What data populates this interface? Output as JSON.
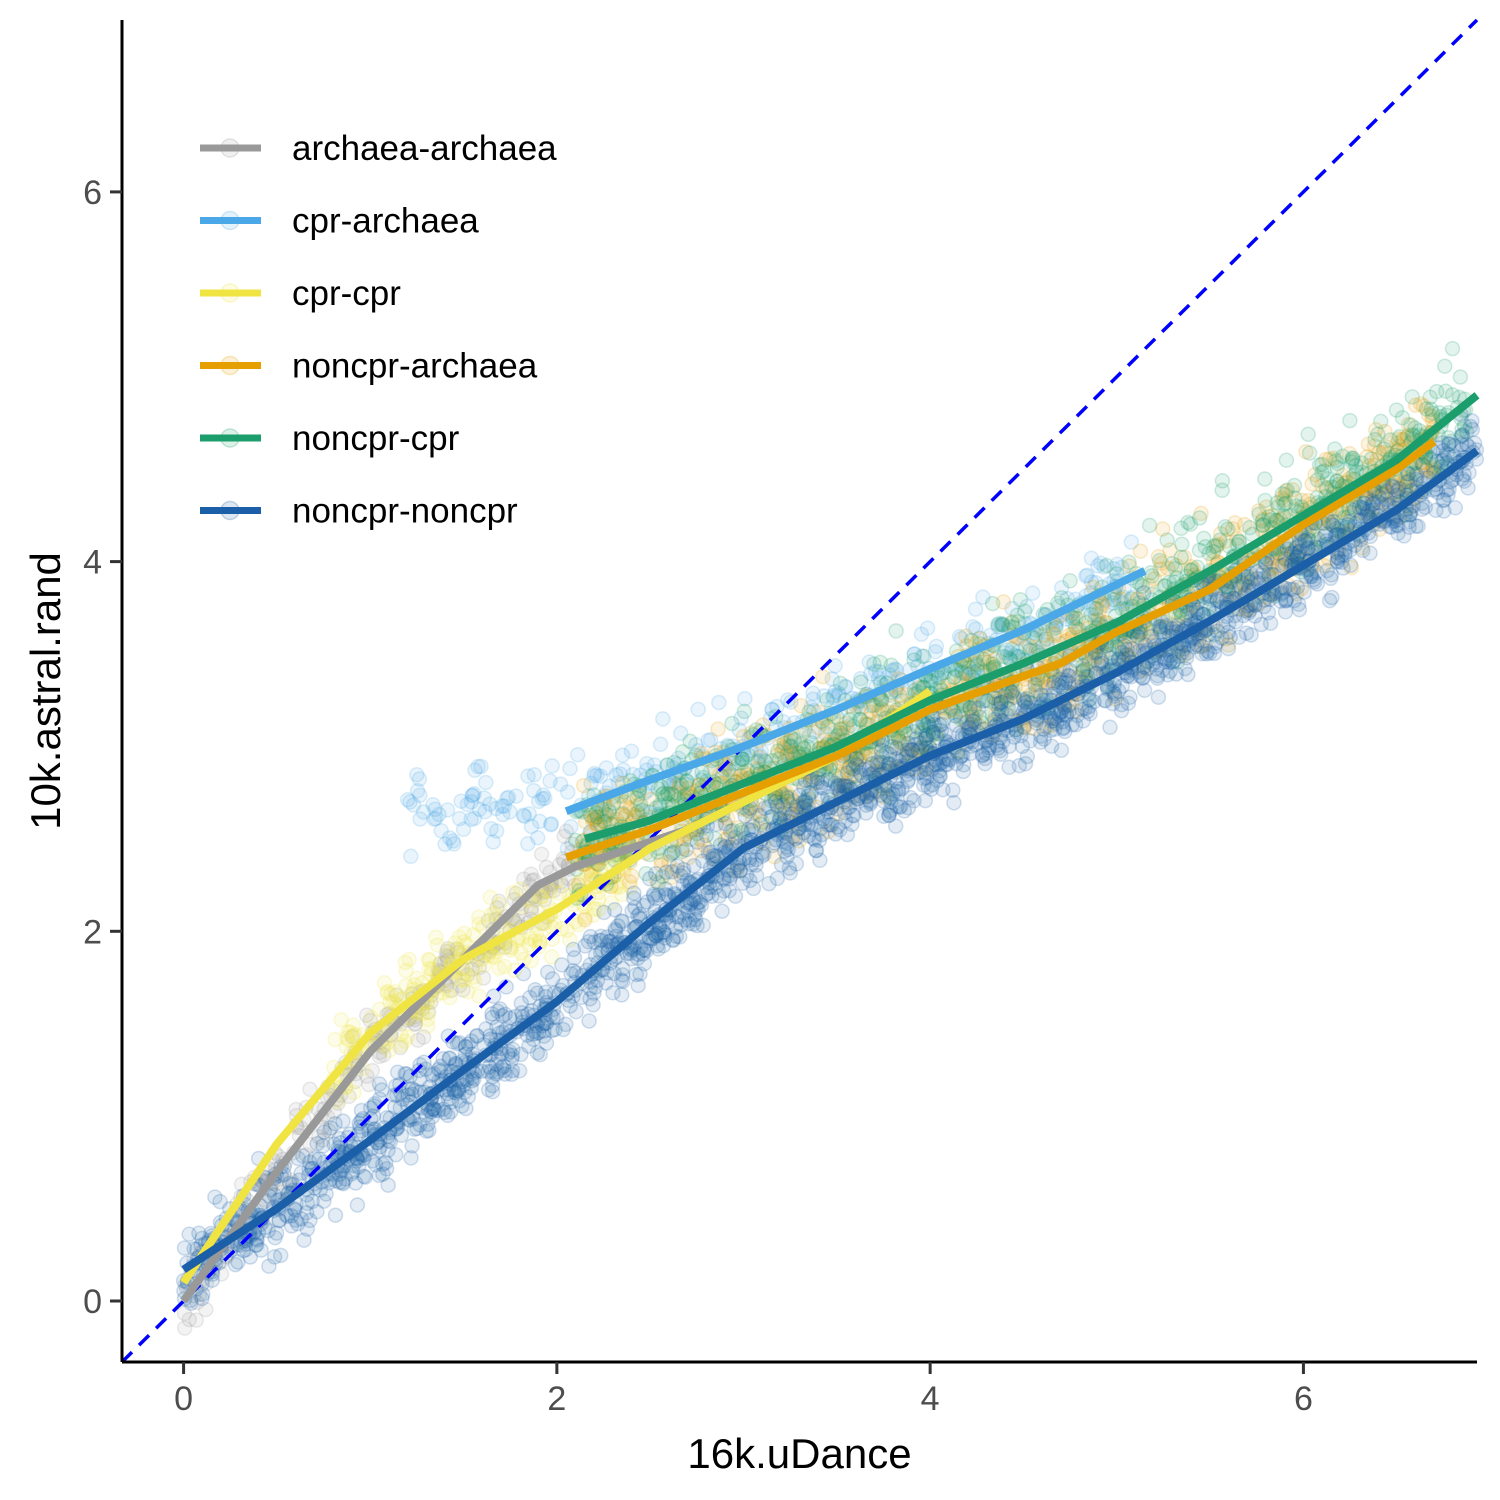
{
  "chart_data": {
    "type": "scatter",
    "title": "",
    "xlabel": "16k.uDance",
    "ylabel": "10k.astral.rand",
    "xlim": [
      -0.33,
      6.93
    ],
    "ylim": [
      -0.33,
      6.93
    ],
    "x_ticks": [
      0,
      2,
      4,
      6
    ],
    "y_ticks": [
      0,
      2,
      4,
      6
    ],
    "x_tick_labels": [
      "0",
      "2",
      "4",
      "6"
    ],
    "y_tick_labels": [
      "0",
      "2",
      "4",
      "6"
    ],
    "grid": false,
    "legend_position": "top-left",
    "reference_line": {
      "type": "identity",
      "slope": 1,
      "intercept": 0,
      "color": "#0000ff",
      "style": "dashed"
    },
    "series": [
      {
        "name": "archaea-archaea",
        "color": "#999999",
        "point_region": {
          "x_range": [
            0.0,
            2.1
          ],
          "spread": 0.18
        },
        "smooth": [
          [
            0.0,
            0.0
          ],
          [
            0.5,
            0.7
          ],
          [
            1.0,
            1.35
          ],
          [
            1.5,
            1.85
          ],
          [
            1.9,
            2.25
          ],
          [
            2.1,
            2.35
          ],
          [
            2.4,
            2.45
          ],
          [
            2.7,
            2.55
          ],
          [
            3.0,
            2.7
          ],
          [
            3.3,
            2.85
          ]
        ]
      },
      {
        "name": "cpr-archaea",
        "color": "#4aa8e8",
        "point_region": {
          "x_range": [
            1.2,
            5.1
          ],
          "spread": 0.22
        },
        "smooth": [
          [
            2.05,
            2.65
          ],
          [
            2.5,
            2.82
          ],
          [
            3.0,
            3.0
          ],
          [
            3.5,
            3.2
          ],
          [
            4.0,
            3.42
          ],
          [
            4.5,
            3.63
          ],
          [
            5.15,
            3.95
          ]
        ]
      },
      {
        "name": "cpr-cpr",
        "color": "#f0e442",
        "point_region": {
          "x_range": [
            0.8,
            2.4
          ],
          "spread": 0.2
        },
        "smooth": [
          [
            0.0,
            0.1
          ],
          [
            0.5,
            0.85
          ],
          [
            1.0,
            1.45
          ],
          [
            1.5,
            1.85
          ],
          [
            2.0,
            2.12
          ],
          [
            2.5,
            2.45
          ],
          [
            3.0,
            2.7
          ],
          [
            3.5,
            2.95
          ],
          [
            4.0,
            3.3
          ]
        ]
      },
      {
        "name": "noncpr-archaea",
        "color": "#e69f00",
        "point_region": {
          "x_range": [
            2.1,
            6.7
          ],
          "spread": 0.3
        },
        "smooth": [
          [
            2.05,
            2.4
          ],
          [
            2.5,
            2.55
          ],
          [
            3.0,
            2.75
          ],
          [
            3.5,
            2.95
          ],
          [
            4.0,
            3.2
          ],
          [
            4.5,
            3.38
          ],
          [
            4.7,
            3.45
          ],
          [
            5.0,
            3.62
          ],
          [
            5.5,
            3.85
          ],
          [
            6.0,
            4.2
          ],
          [
            6.5,
            4.5
          ],
          [
            6.7,
            4.65
          ]
        ]
      },
      {
        "name": "noncpr-cpr",
        "color": "#1b9e6b",
        "point_region": {
          "x_range": [
            2.1,
            6.9
          ],
          "spread": 0.3
        },
        "smooth": [
          [
            2.15,
            2.5
          ],
          [
            2.5,
            2.6
          ],
          [
            3.0,
            2.8
          ],
          [
            3.5,
            3.0
          ],
          [
            4.0,
            3.25
          ],
          [
            4.5,
            3.45
          ],
          [
            5.0,
            3.67
          ],
          [
            5.5,
            3.95
          ],
          [
            6.0,
            4.25
          ],
          [
            6.5,
            4.55
          ],
          [
            6.93,
            4.9
          ]
        ]
      },
      {
        "name": "noncpr-noncpr",
        "color": "#1a5fa8",
        "point_region": {
          "x_range": [
            0.0,
            6.93
          ],
          "spread": 0.22
        },
        "smooth": [
          [
            0.0,
            0.17
          ],
          [
            0.5,
            0.5
          ],
          [
            1.0,
            0.87
          ],
          [
            1.5,
            1.25
          ],
          [
            2.0,
            1.62
          ],
          [
            2.5,
            2.05
          ],
          [
            3.0,
            2.45
          ],
          [
            3.5,
            2.7
          ],
          [
            4.0,
            2.95
          ],
          [
            4.5,
            3.15
          ],
          [
            5.0,
            3.4
          ],
          [
            5.5,
            3.68
          ],
          [
            6.0,
            3.98
          ],
          [
            6.5,
            4.28
          ],
          [
            6.93,
            4.6
          ]
        ]
      }
    ]
  }
}
